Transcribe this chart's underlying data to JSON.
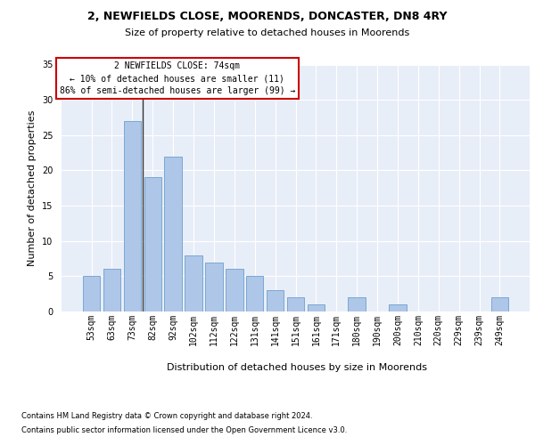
{
  "title": "2, NEWFIELDS CLOSE, MOORENDS, DONCASTER, DN8 4RY",
  "subtitle": "Size of property relative to detached houses in Moorends",
  "xlabel": "Distribution of detached houses by size in Moorends",
  "ylabel": "Number of detached properties",
  "footer_line1": "Contains HM Land Registry data © Crown copyright and database right 2024.",
  "footer_line2": "Contains public sector information licensed under the Open Government Licence v3.0.",
  "bar_labels": [
    "53sqm",
    "63sqm",
    "73sqm",
    "82sqm",
    "92sqm",
    "102sqm",
    "112sqm",
    "122sqm",
    "131sqm",
    "141sqm",
    "151sqm",
    "161sqm",
    "171sqm",
    "180sqm",
    "190sqm",
    "200sqm",
    "210sqm",
    "220sqm",
    "229sqm",
    "239sqm",
    "249sqm"
  ],
  "bar_values": [
    5,
    6,
    27,
    19,
    22,
    8,
    7,
    6,
    5,
    3,
    2,
    1,
    0,
    2,
    0,
    1,
    0,
    0,
    0,
    0,
    2
  ],
  "bar_color": "#aec6e8",
  "bar_edge_color": "#7aa8d2",
  "background_color": "#e8eef8",
  "grid_color": "#ffffff",
  "annotation_text_line1": "2 NEWFIELDS CLOSE: 74sqm",
  "annotation_text_line2": "← 10% of detached houses are smaller (11)",
  "annotation_text_line3": "86% of semi-detached houses are larger (99) →",
  "vline_color": "#333333",
  "annotation_box_facecolor": "#ffffff",
  "annotation_box_edgecolor": "#cc0000",
  "ylim": [
    0,
    35
  ],
  "yticks": [
    0,
    5,
    10,
    15,
    20,
    25,
    30,
    35
  ],
  "title_fontsize": 9,
  "subtitle_fontsize": 8,
  "ylabel_fontsize": 8,
  "xlabel_fontsize": 8,
  "tick_fontsize": 7,
  "footer_fontsize": 6,
  "annotation_fontsize": 7
}
